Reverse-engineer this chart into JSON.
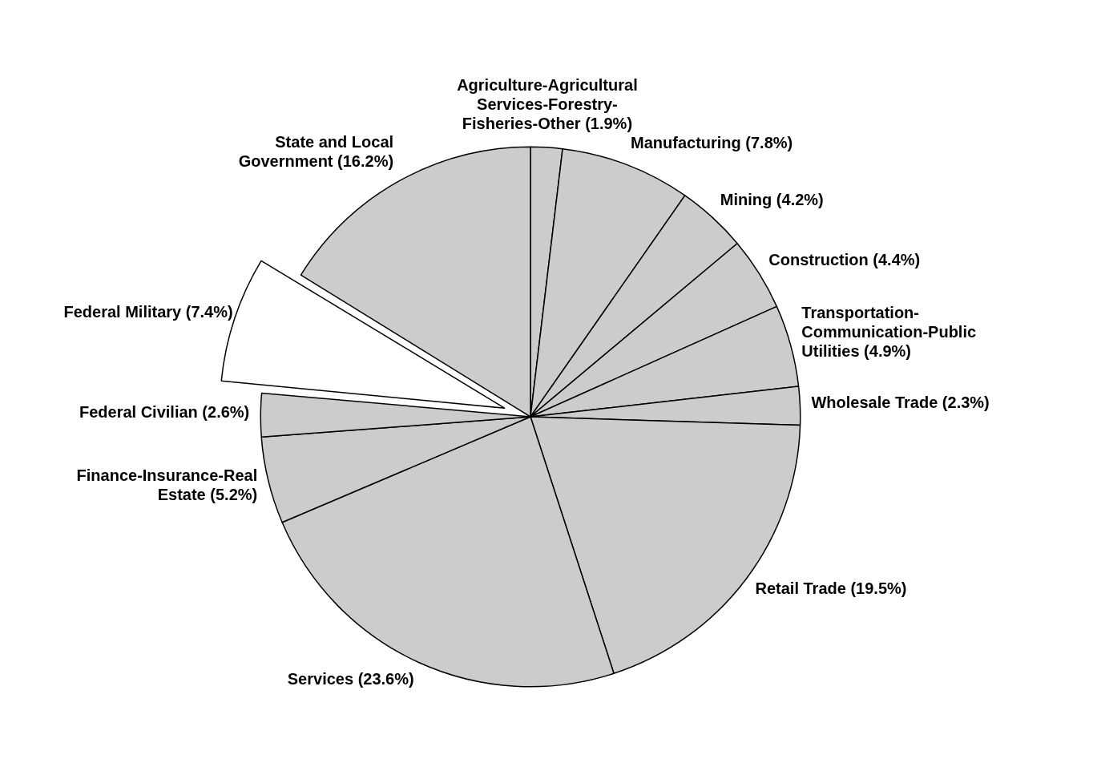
{
  "chart_data": {
    "type": "pie",
    "categories": [
      "Agriculture-Agricultural Services-Forestry-Fisheries-Other",
      "Manufacturing",
      "Mining",
      "Construction",
      "Transportation-Communication-Public Utilities",
      "Wholesale Trade",
      "Retail Trade",
      "Services",
      "Finance-Insurance-Real Estate",
      "Federal Civilian",
      "Federal Military",
      "State and Local Government"
    ],
    "values": [
      1.9,
      7.8,
      4.2,
      4.4,
      4.9,
      2.3,
      19.5,
      23.6,
      5.2,
      2.6,
      7.4,
      16.2
    ],
    "colors": [
      "#cccccc",
      "#cccccc",
      "#cccccc",
      "#cccccc",
      "#cccccc",
      "#cccccc",
      "#cccccc",
      "#cccccc",
      "#cccccc",
      "#cccccc",
      "#ffffff",
      "#cccccc"
    ],
    "value_labels": [
      "(1.9%)",
      "(7.8%)",
      "(4.2%)",
      "(4.4%)",
      "(4.9%)",
      "(2.3%)",
      "(19.5%)",
      "(23.6%)",
      "(5.2%)",
      "(2.6%)",
      "(7.4%)",
      "(16.2%)"
    ],
    "legend": false
  }
}
